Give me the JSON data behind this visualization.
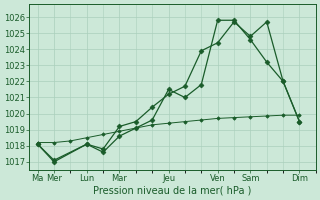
{
  "background_color": "#cce8d8",
  "grid_color": "#aacfbc",
  "line_color": "#1a5c2a",
  "xlabel": "Pression niveau de la mer( hPa )",
  "ylim": [
    1016.5,
    1026.8
  ],
  "yticks": [
    1017,
    1018,
    1019,
    1020,
    1021,
    1022,
    1023,
    1024,
    1025,
    1026
  ],
  "x_day_labels": [
    "Ma",
    "Mer",
    "Lun",
    "Mar",
    "Jeu",
    "Ven",
    "Sam",
    "Dim"
  ],
  "x_day_positions": [
    0,
    2,
    6,
    10,
    16,
    22,
    26,
    32
  ],
  "xlim": [
    -1,
    34
  ],
  "series1_x": [
    0,
    2,
    6,
    8,
    10,
    12,
    14,
    16,
    18,
    20,
    22,
    24,
    26,
    28,
    30,
    32
  ],
  "series1_y": [
    1018.1,
    1017.0,
    1018.1,
    1017.6,
    1018.6,
    1019.1,
    1019.6,
    1021.5,
    1021.0,
    1021.8,
    1025.8,
    1025.8,
    1024.6,
    1023.2,
    1022.0,
    1019.5
  ],
  "series2_x": [
    0,
    2,
    6,
    8,
    10,
    12,
    14,
    16,
    18,
    20,
    22,
    24,
    26,
    28,
    30,
    32
  ],
  "series2_y": [
    1018.1,
    1017.1,
    1018.1,
    1017.8,
    1019.2,
    1019.5,
    1020.4,
    1021.2,
    1021.7,
    1023.9,
    1024.4,
    1025.7,
    1024.8,
    1025.7,
    1022.0,
    1019.5
  ],
  "series3_x": [
    0,
    2,
    4,
    6,
    8,
    10,
    12,
    14,
    16,
    18,
    20,
    22,
    24,
    26,
    28,
    30,
    32
  ],
  "series3_y": [
    1018.2,
    1018.2,
    1018.3,
    1018.5,
    1018.7,
    1018.9,
    1019.1,
    1019.3,
    1019.4,
    1019.5,
    1019.6,
    1019.7,
    1019.75,
    1019.8,
    1019.85,
    1019.9,
    1019.9
  ],
  "tick_fontsize": 6,
  "xlabel_fontsize": 7
}
